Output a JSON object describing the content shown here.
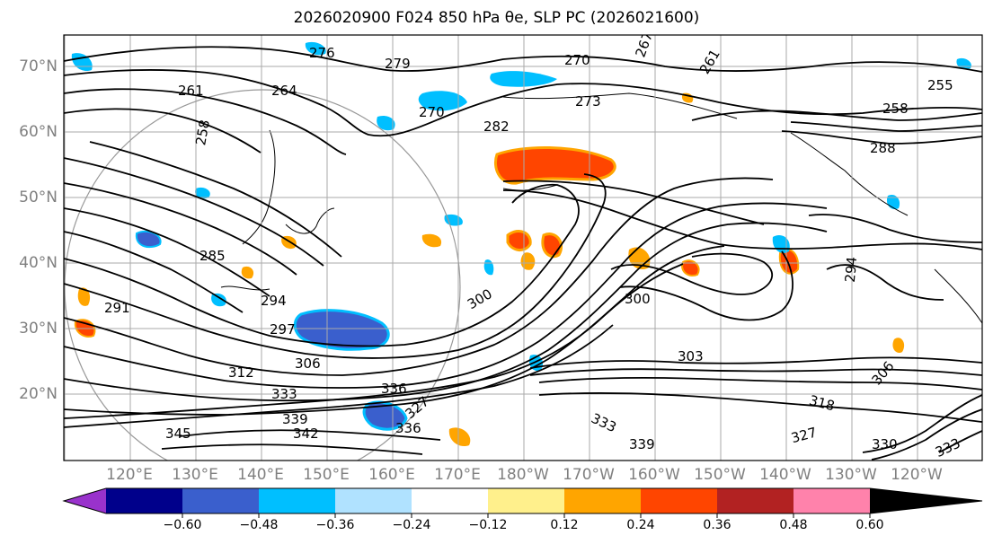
{
  "title": "2026020900 F024 850 hPa θe, SLP PC (2026021600)",
  "lat_labels": [
    "70°N",
    "60°N",
    "50°N",
    "40°N",
    "30°N",
    "20°N"
  ],
  "lon_labels": [
    "120°E",
    "130°E",
    "140°E",
    "150°E",
    "160°E",
    "170°E",
    "180°W",
    "170°W",
    "160°W",
    "150°W",
    "140°W",
    "130°W",
    "120°W"
  ],
  "contour_labels": [
    "276",
    "279",
    "270",
    "264",
    "261",
    "258",
    "267",
    "261",
    "255",
    "258",
    "288",
    "270",
    "273",
    "282",
    "285",
    "294",
    "291",
    "297",
    "300",
    "300",
    "303",
    "306",
    "312",
    "333",
    "336",
    "327",
    "339",
    "345",
    "342",
    "336",
    "333",
    "339",
    "318",
    "327",
    "330",
    "333",
    "294",
    "306"
  ],
  "colorbar": {
    "ticks": [
      "−0.60",
      "−0.48",
      "−0.36",
      "−0.24",
      "−0.12",
      "0.12",
      "0.24",
      "0.36",
      "0.48",
      "0.60"
    ],
    "colors": [
      "#9932cc",
      "#00008b",
      "#3a5fcd",
      "#00bfff",
      "#b0e2ff",
      "#ffffff",
      "#fff08c",
      "#ffa500",
      "#ff4500",
      "#b22222",
      "#ff82ab"
    ]
  }
}
